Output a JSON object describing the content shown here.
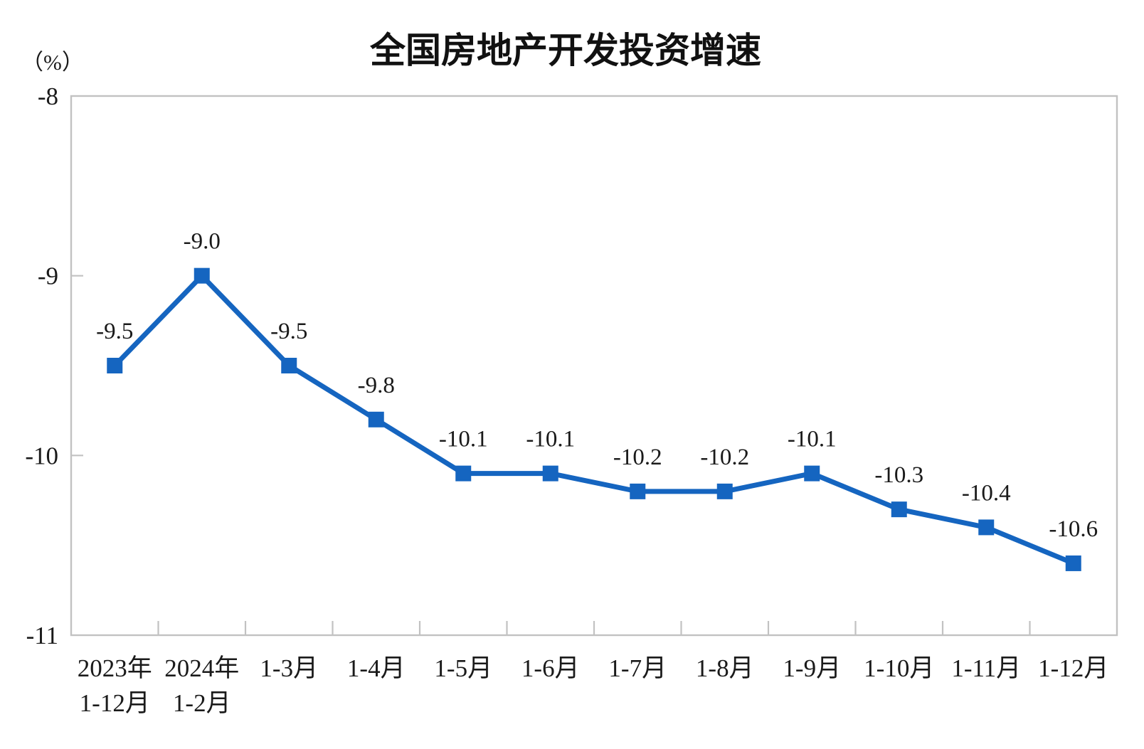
{
  "page": {
    "background": "#ffffff"
  },
  "chart_data": {
    "type": "line",
    "title": "全国房地产开发投资增速",
    "unit_label": "（%）",
    "categories": [
      [
        "2023年",
        "1-12月"
      ],
      [
        "2024年",
        "1-2月"
      ],
      [
        "1-3月"
      ],
      [
        "1-4月"
      ],
      [
        "1-5月"
      ],
      [
        "1-6月"
      ],
      [
        "1-7月"
      ],
      [
        "1-8月"
      ],
      [
        "1-9月"
      ],
      [
        "1-10月"
      ],
      [
        "1-11月"
      ],
      [
        "1-12月"
      ]
    ],
    "values": [
      -9.5,
      -9.0,
      -9.5,
      -9.8,
      -10.1,
      -10.1,
      -10.2,
      -10.2,
      -10.1,
      -10.3,
      -10.4,
      -10.6
    ],
    "data_labels": [
      "-9.5",
      "-9.0",
      "-9.5",
      "-9.8",
      "-10.1",
      "-10.1",
      "-10.2",
      "-10.2",
      "-10.1",
      "-10.3",
      "-10.4",
      "-10.6"
    ],
    "y_ticks": [
      -8,
      -9,
      -10,
      -11
    ],
    "y_tick_labels": [
      "-8",
      "-9",
      "-10",
      "-11"
    ],
    "ylim": [
      -11,
      -8
    ],
    "xlabel": "",
    "ylabel": "（%）",
    "grid": false,
    "legend": "none",
    "line_color": "#1565c0",
    "marker": "square",
    "marker_color": "#1565c0",
    "label_color": "#1a1a1a",
    "axis_color": "#c2c2c2",
    "title_color": "#111111"
  }
}
